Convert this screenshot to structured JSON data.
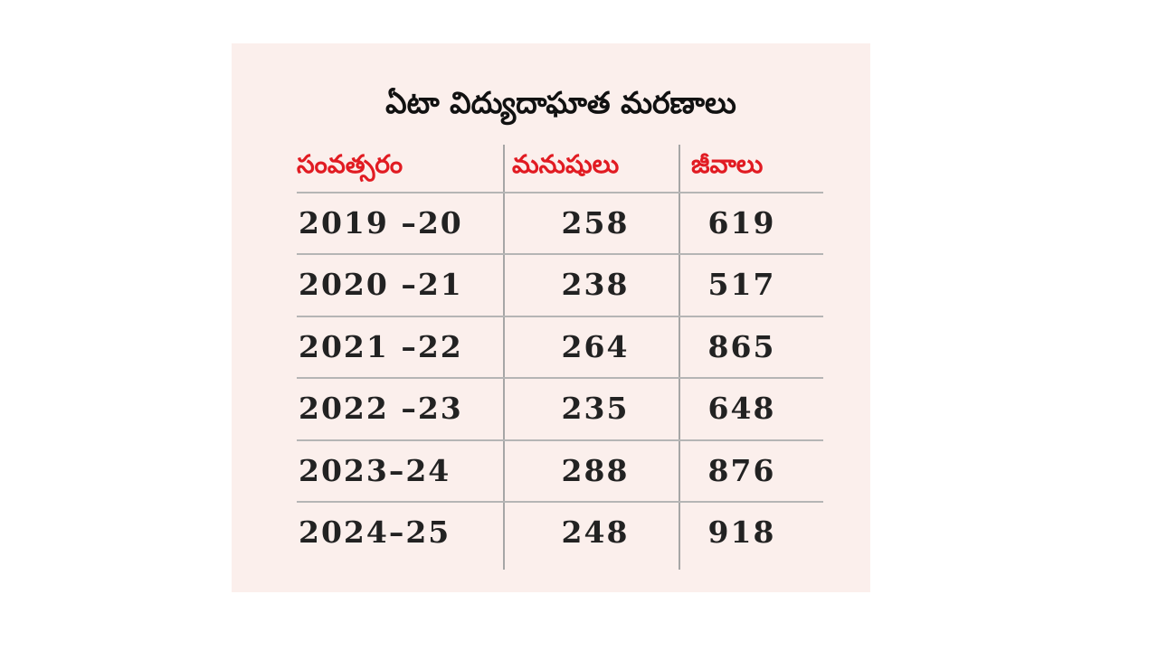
{
  "chart_data": {
    "type": "table",
    "title": "ఏటా విద్యుదాఘాత మరణాలు",
    "columns": [
      "సంవత్సరం",
      "మనుషులు",
      "జీవాలు"
    ],
    "rows": [
      {
        "year": "2019 –20",
        "humans": "258",
        "animals": "619"
      },
      {
        "year": "2020 –21",
        "humans": "238",
        "animals": "517"
      },
      {
        "year": "2021 –22",
        "humans": "264",
        "animals": "865"
      },
      {
        "year": "2022 –23",
        "humans": "235",
        "animals": "648"
      },
      {
        "year": "2023–24",
        "humans": "288",
        "animals": "876"
      },
      {
        "year": "2024–25",
        "humans": "248",
        "animals": "918"
      }
    ]
  },
  "colors": {
    "background": "#fbefec",
    "header_text": "#e11b22",
    "body_text": "#222222",
    "rule": "#b5b5b5"
  }
}
